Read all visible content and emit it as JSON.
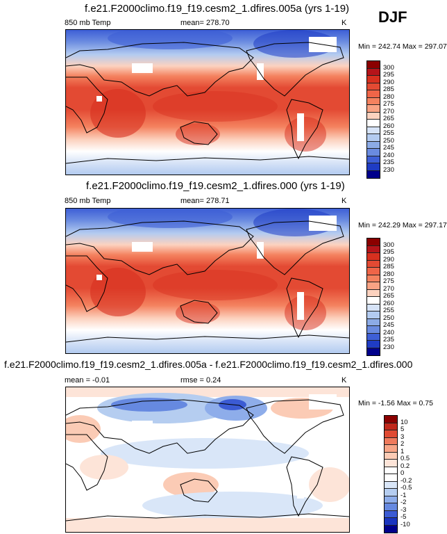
{
  "season": "DJF",
  "panels": [
    {
      "title": "f.e21.F2000climo.f19_f19.cesm2_1.dfires.005a (yrs 1-19)",
      "variable": "850 mb Temp",
      "stat1": "mean= 278.70",
      "stat2": "",
      "units": "K",
      "minmax": "Min = 242.74 Max = 297.07",
      "colorbar": {
        "levels": [
          "300",
          "295",
          "290",
          "285",
          "280",
          "275",
          "270",
          "265",
          "260",
          "255",
          "250",
          "245",
          "240",
          "235",
          "230"
        ],
        "colors": [
          "#8b0000",
          "#b5141a",
          "#d7301f",
          "#e34a33",
          "#ef6548",
          "#f4825f",
          "#f9a384",
          "#fcd2bf",
          "#ffffff",
          "#d6e3f7",
          "#b3cbf0",
          "#8cabe6",
          "#6a8be0",
          "#3e5fd6",
          "#1f3cc4",
          "#00008b"
        ]
      },
      "map": "abs"
    },
    {
      "title": "f.e21.F2000climo.f19_f19.cesm2_1.dfires.000 (yrs 1-19)",
      "variable": "850 mb Temp",
      "stat1": "mean= 278.71",
      "stat2": "",
      "units": "K",
      "minmax": "Min = 242.29 Max = 297.17",
      "colorbar": {
        "levels": [
          "300",
          "295",
          "290",
          "285",
          "280",
          "275",
          "270",
          "265",
          "260",
          "255",
          "250",
          "245",
          "240",
          "235",
          "230"
        ],
        "colors": [
          "#8b0000",
          "#b5141a",
          "#d7301f",
          "#e34a33",
          "#ef6548",
          "#f4825f",
          "#f9a384",
          "#fcd2bf",
          "#ffffff",
          "#d6e3f7",
          "#b3cbf0",
          "#8cabe6",
          "#6a8be0",
          "#3e5fd6",
          "#1f3cc4",
          "#00008b"
        ]
      },
      "map": "abs"
    },
    {
      "title": "f.e21.F2000climo.f19_f19.cesm2_1.dfires.005a - f.e21.F2000climo.f19_f19.cesm2_1.dfires.000",
      "variable": "mean =  -0.01",
      "stat1": "rmse =   0.24",
      "stat2": "",
      "units": "K",
      "minmax": "Min =  -1.56 Max =   0.75",
      "colorbar": {
        "levels": [
          "10",
          "5",
          "3",
          "2",
          "1",
          "0.5",
          "0.2",
          "0",
          "-0.2",
          "-0.5",
          "-1",
          "-2",
          "-3",
          "-5",
          "-10"
        ],
        "colors": [
          "#8b0000",
          "#c0281b",
          "#e04a32",
          "#ef7a5c",
          "#f7a587",
          "#fbcbb5",
          "#fde4d8",
          "#ffffff",
          "#ffffff",
          "#d9e6f8",
          "#b5cdf0",
          "#8eadea",
          "#6689e0",
          "#3b5bd4",
          "#1a35bf",
          "#00008b"
        ]
      },
      "map": "diff"
    }
  ]
}
